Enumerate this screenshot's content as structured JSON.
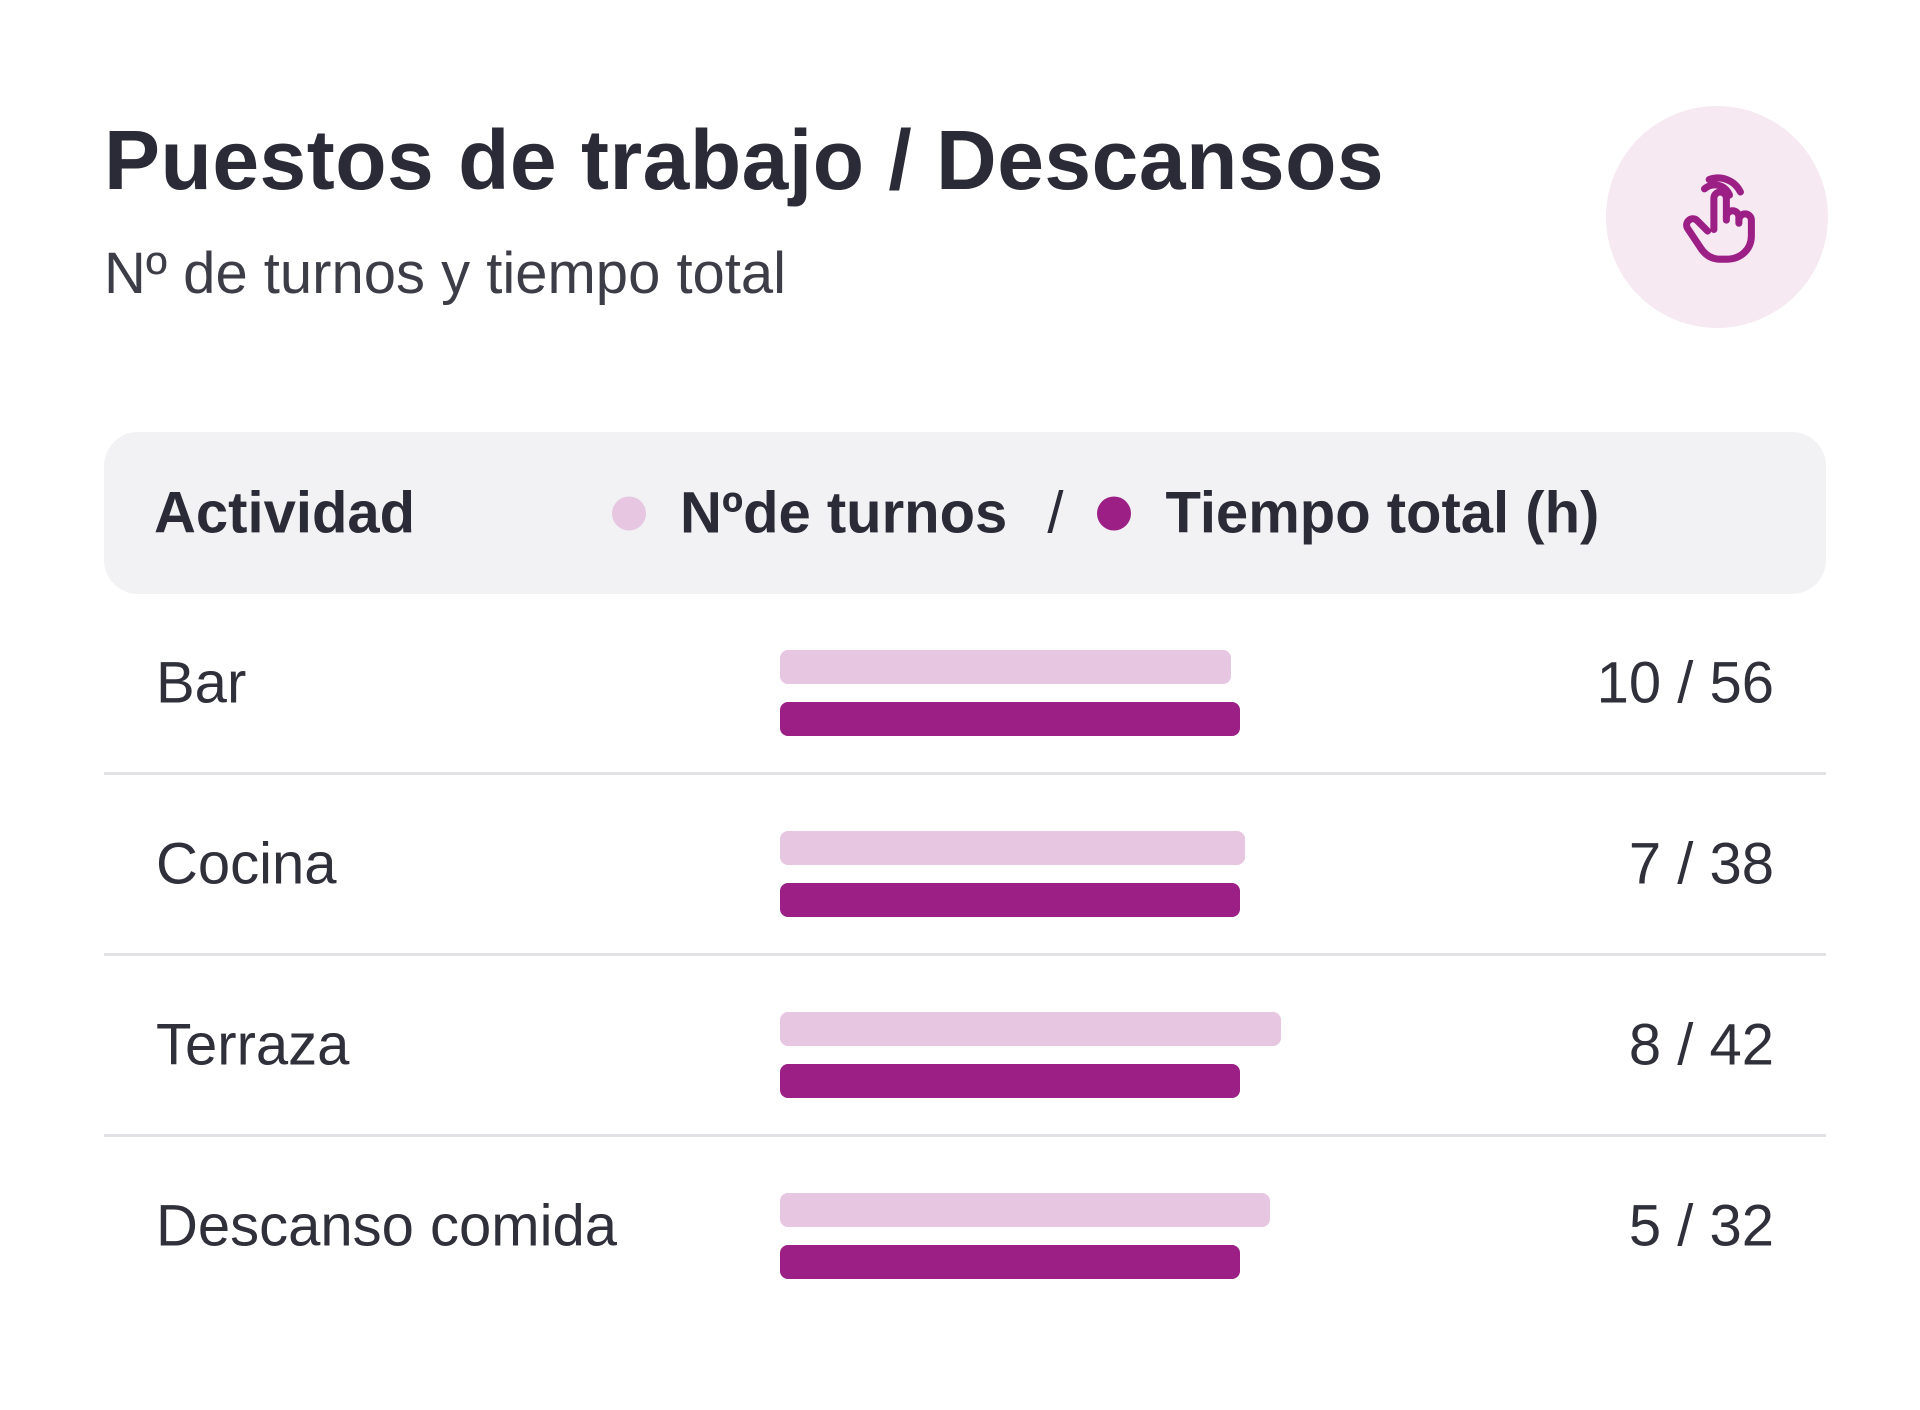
{
  "header": {
    "title": "Puestos de trabajo / Descansos",
    "subtitle": "Nº de turnos y tiempo total",
    "action_icon": "touch-hand-icon"
  },
  "table": {
    "col_activity": "Actividad",
    "legend_shifts": "Nºde turnos",
    "legend_separator": "/",
    "legend_hours": "Tiempo total (h)"
  },
  "colors": {
    "shifts": "#e6c6e0",
    "hours": "#9c1f86",
    "button_bg": "#f6e9f2"
  },
  "chart_data": {
    "type": "bar",
    "categories": [
      "Bar",
      "Cocina",
      "Terraza",
      "Descanso comida"
    ],
    "series": [
      {
        "name": "Nºde turnos",
        "values": [
          10,
          7,
          8,
          5
        ]
      },
      {
        "name": "Tiempo total (h)",
        "values": [
          56,
          38,
          42,
          32
        ]
      }
    ],
    "display_values": [
      "10 / 56",
      "7 / 38",
      "8 / 42",
      "5 / 32"
    ],
    "shifts_bar_fill": [
      0.98,
      1.01,
      1.09,
      1.065
    ],
    "hours_bar_fill": [
      1.0,
      1.0,
      1.0,
      1.0
    ]
  }
}
